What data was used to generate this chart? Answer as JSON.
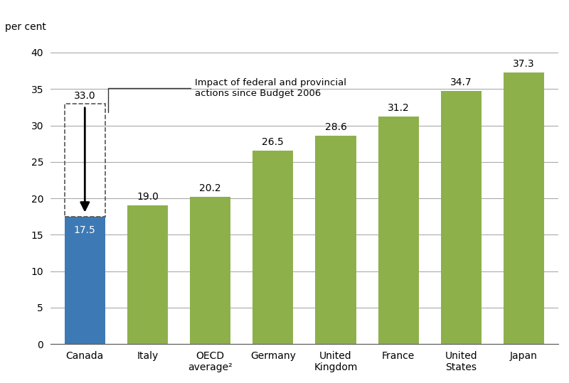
{
  "categories": [
    "Canada",
    "Italy",
    "OECD\naverage²",
    "Germany",
    "United\nKingdom",
    "France",
    "United\nStates",
    "Japan"
  ],
  "values": [
    17.5,
    19.0,
    20.2,
    26.5,
    28.6,
    31.2,
    34.7,
    37.3
  ],
  "bar_colors": [
    "#3d7ab5",
    "#8db04a",
    "#8db04a",
    "#8db04a",
    "#8db04a",
    "#8db04a",
    "#8db04a",
    "#8db04a"
  ],
  "canada_old_value": 33.0,
  "ylabel": "per cent",
  "ylim": [
    0,
    42
  ],
  "yticks": [
    0,
    5,
    10,
    15,
    20,
    25,
    30,
    35,
    40
  ],
  "annotation_text": "Impact of federal and provincial\nactions since Budget 2006",
  "background_color": "#ffffff",
  "grid_color": "#aaaaaa",
  "bar_label_color_canada": "#ffffff",
  "bar_label_color_others": "#000000",
  "dashed_rect_color": "#555555",
  "arrow_color": "#000000"
}
